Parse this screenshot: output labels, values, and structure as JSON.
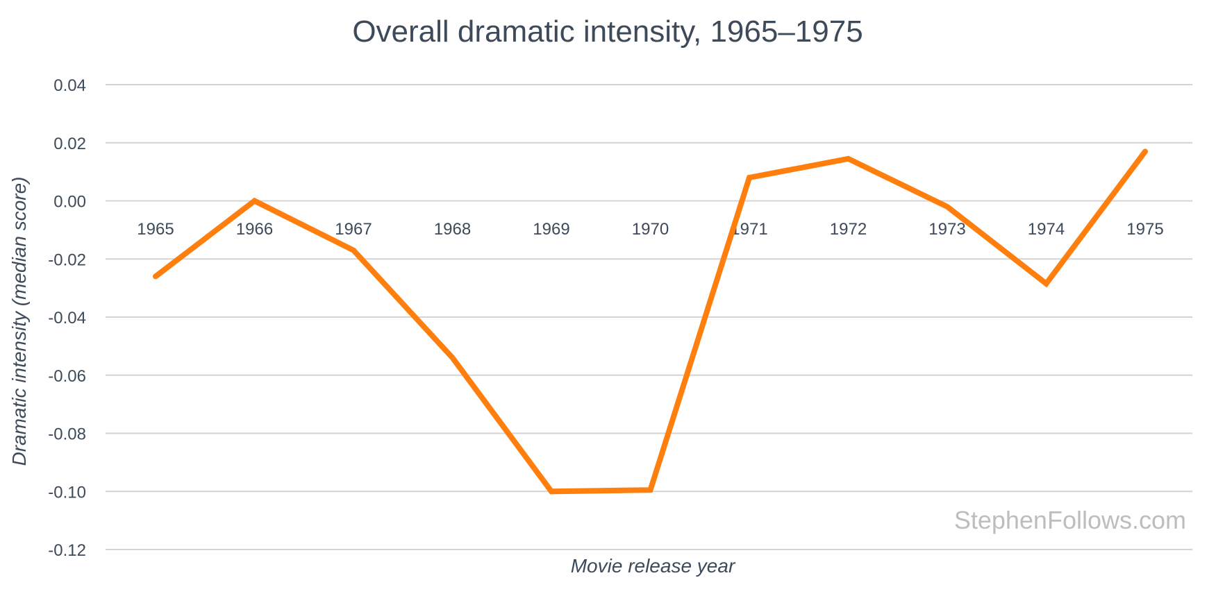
{
  "chart_data": {
    "type": "line",
    "title": "Overall dramatic intensity, 1965–1975",
    "xlabel": "Movie release year",
    "ylabel": "Dramatic intensity (median score)",
    "categories": [
      "1965",
      "1966",
      "1967",
      "1968",
      "1969",
      "1970",
      "1971",
      "1972",
      "1973",
      "1974",
      "1975"
    ],
    "series": [
      {
        "values": [
          -0.026,
          0.0,
          -0.017,
          -0.054,
          -0.1,
          -0.0995,
          0.008,
          0.0145,
          -0.002,
          -0.0285,
          0.017
        ],
        "color": "#ff7f0e"
      }
    ],
    "ylim": [
      -0.12,
      0.04
    ],
    "yticks": [
      "0.04",
      "0.02",
      "0.00",
      "-0.02",
      "-0.04",
      "-0.06",
      "-0.08",
      "-0.10",
      "-0.12"
    ],
    "ytick_values": [
      0.04,
      0.02,
      0.0,
      -0.02,
      -0.04,
      -0.06,
      -0.08,
      -0.1,
      -0.12
    ],
    "grid": true,
    "legend": "none",
    "watermark": "StephenFollows.com"
  }
}
